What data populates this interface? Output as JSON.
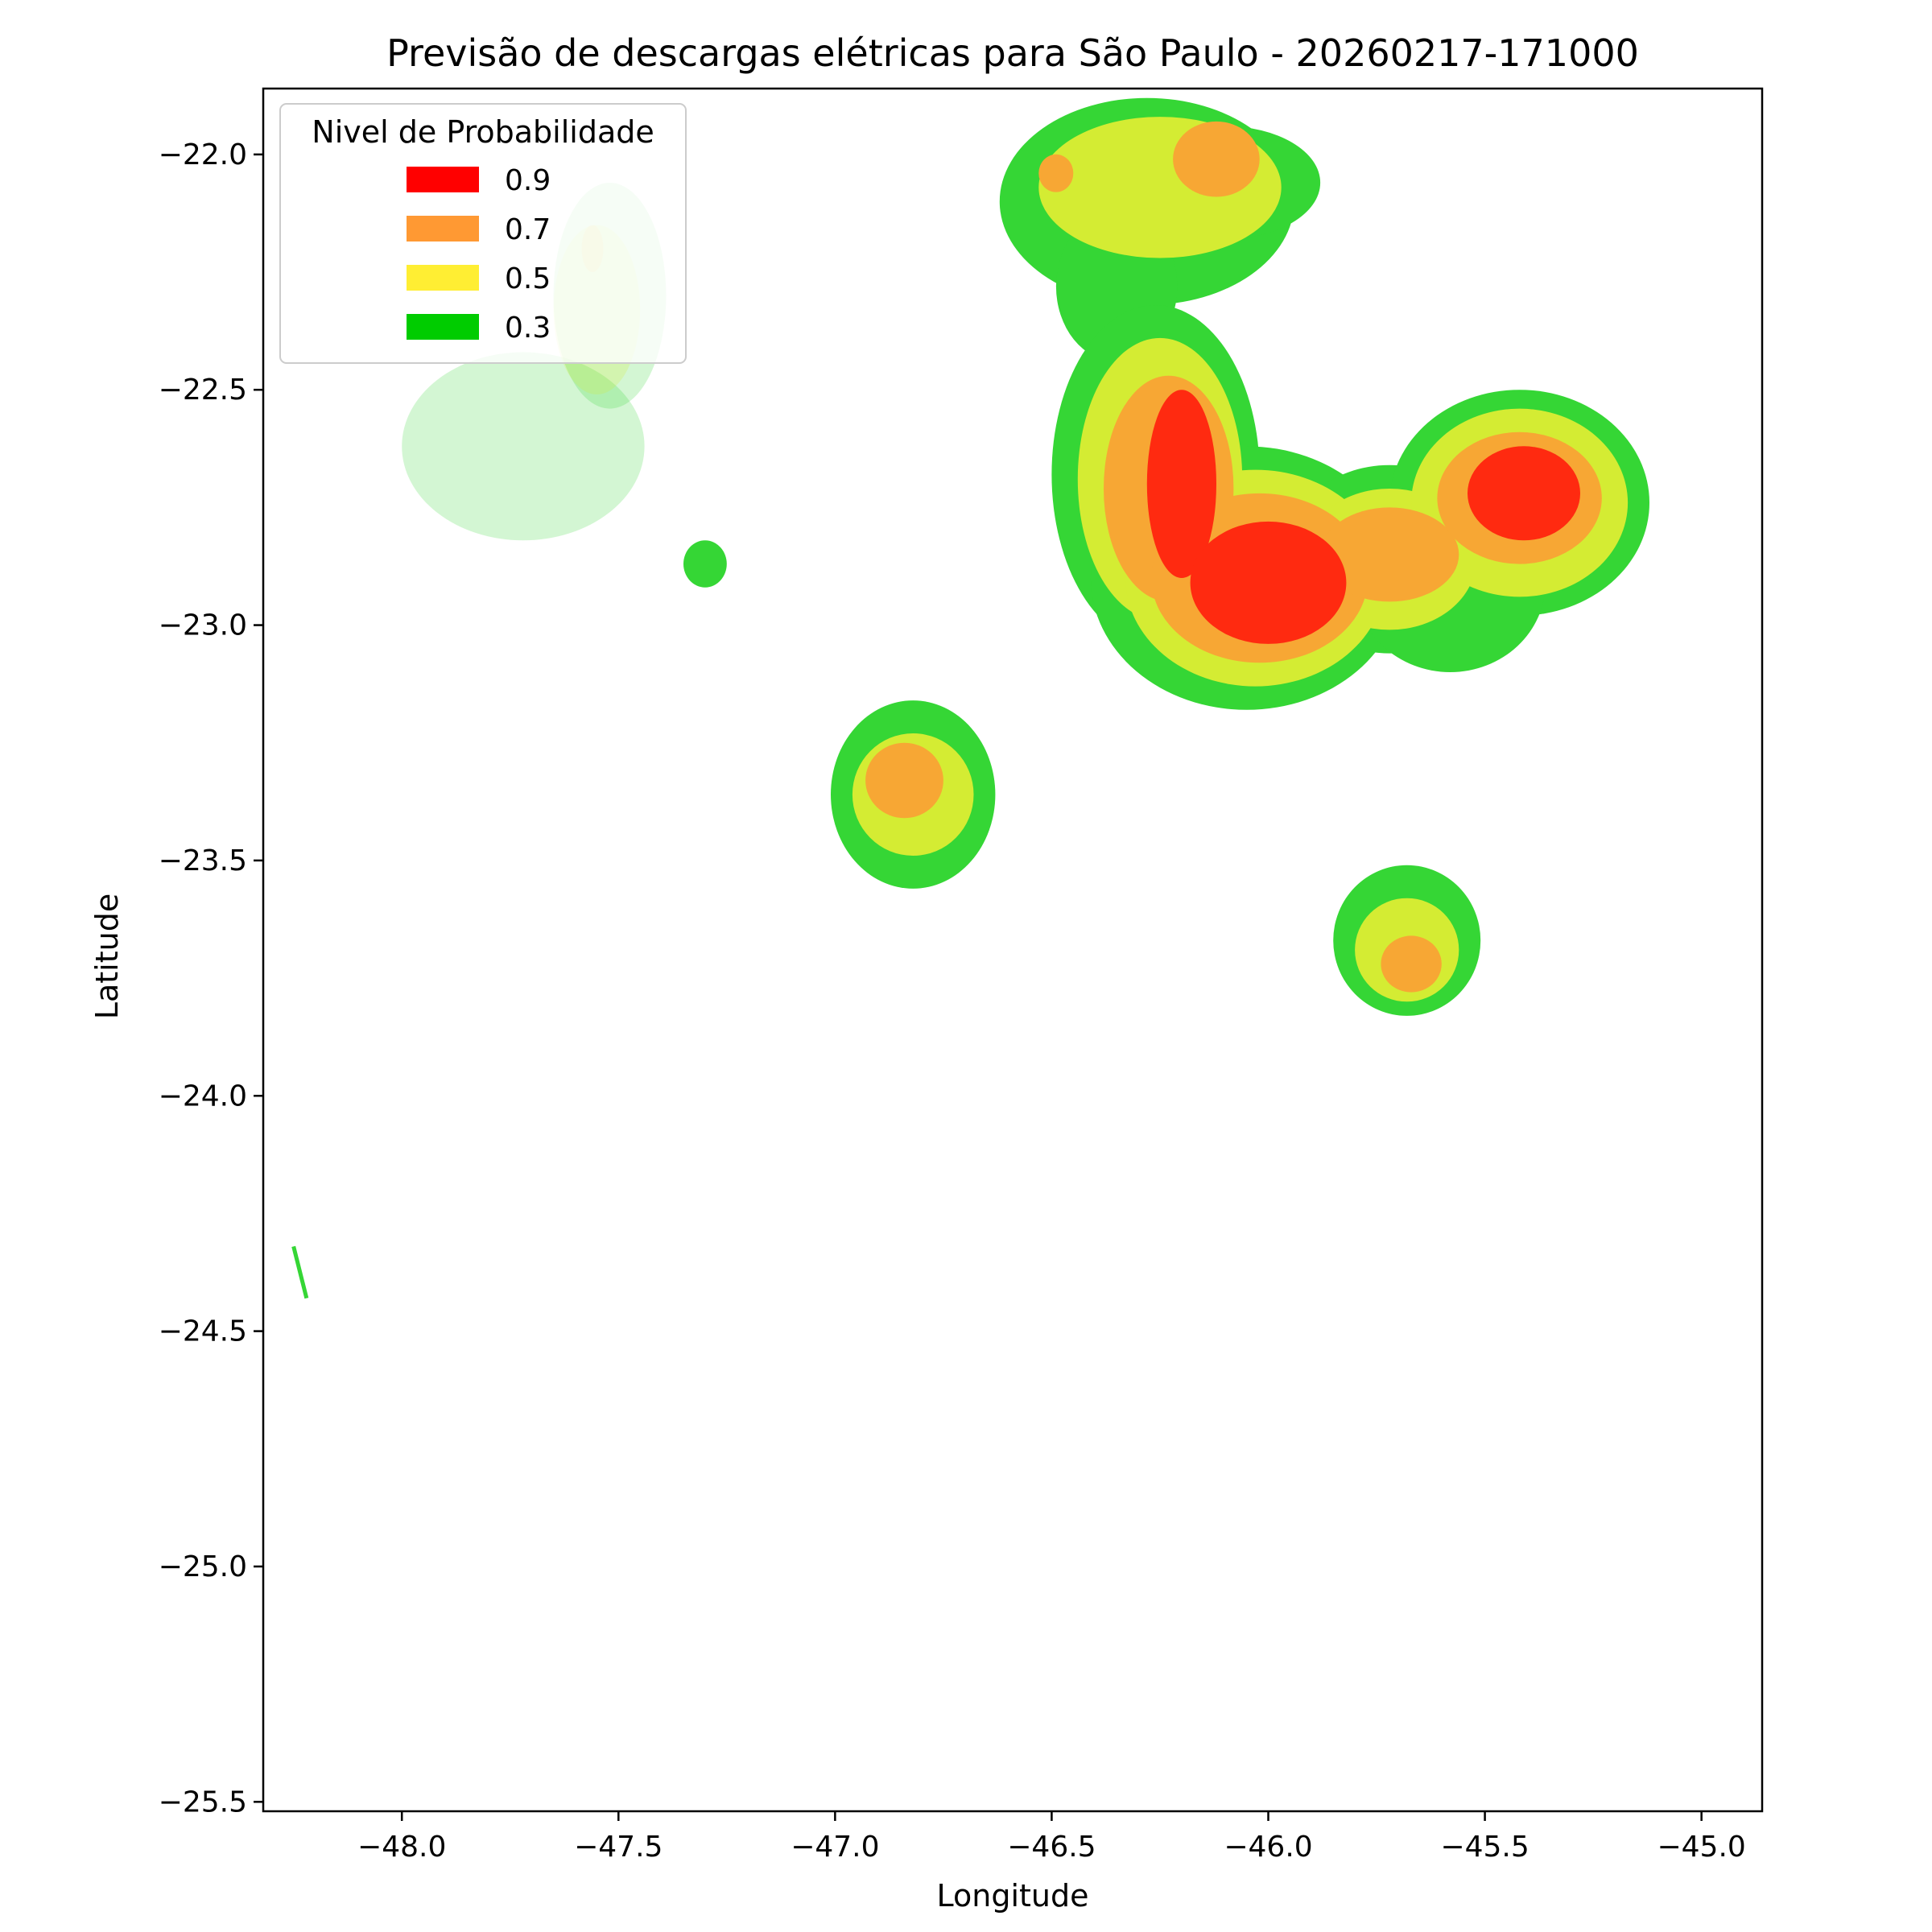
{
  "chart_data": {
    "type": "contour",
    "title": "Previsão de descargas elétricas para São Paulo - 20260217-171000",
    "xlabel": "Longitude",
    "ylabel": "Latitude",
    "xlim": [
      -48.32,
      -44.86
    ],
    "ylim": [
      -25.52,
      -21.86
    ],
    "xticks": [
      -48.0,
      -47.5,
      -47.0,
      -46.5,
      -46.0,
      -45.5,
      -45.0
    ],
    "xtick_labels": [
      "−48.0",
      "−47.5",
      "−47.0",
      "−46.5",
      "−46.0",
      "−45.5",
      "−45.0"
    ],
    "yticks": [
      -22.0,
      -22.5,
      -23.0,
      -23.5,
      -24.0,
      -24.5,
      -25.0,
      -25.5
    ],
    "ytick_labels": [
      "−22.0",
      "−22.5",
      "−23.0",
      "−23.5",
      "−24.0",
      "−24.5",
      "−25.0",
      "−25.5"
    ],
    "grid": false,
    "legend": {
      "title": "Nivel de Probabilidade",
      "location": "upper-left",
      "entries": [
        {
          "label": "0.9",
          "color": "#ff0000"
        },
        {
          "label": "0.7",
          "color": "#ff9933"
        },
        {
          "label": "0.5",
          "color": "#ffee33"
        },
        {
          "label": "0.3",
          "color": "#00cc00"
        }
      ]
    },
    "fill_colors": {
      "0.3": "#35d635",
      "0.5": "#d4ec33",
      "0.7": "#f7a734",
      "0.9": "#ff2a10"
    },
    "cells": [
      {
        "level": 0.3,
        "lon": -47.72,
        "lat": -22.62,
        "r_lon": 0.28,
        "r_lat": 0.2,
        "faded": true
      },
      {
        "level": 0.3,
        "lon": -47.52,
        "lat": -22.3,
        "r_lon": 0.13,
        "r_lat": 0.24,
        "faded": true
      },
      {
        "level": 0.5,
        "lon": -47.55,
        "lat": -22.33,
        "r_lon": 0.1,
        "r_lat": 0.18,
        "faded": true
      },
      {
        "level": 0.7,
        "lon": -47.56,
        "lat": -22.2,
        "r_lon": 0.025,
        "r_lat": 0.05,
        "faded": true
      },
      {
        "level": 0.3,
        "lon": -47.3,
        "lat": -22.87,
        "r_lon": 0.05,
        "r_lat": 0.05
      },
      {
        "level": 0.3,
        "lon": -46.82,
        "lat": -23.36,
        "r_lon": 0.19,
        "r_lat": 0.2
      },
      {
        "level": 0.5,
        "lon": -46.82,
        "lat": -23.36,
        "r_lon": 0.14,
        "r_lat": 0.13
      },
      {
        "level": 0.7,
        "lon": -46.84,
        "lat": -23.33,
        "r_lon": 0.09,
        "r_lat": 0.08
      },
      {
        "level": 0.3,
        "lon": -45.68,
        "lat": -23.67,
        "r_lon": 0.17,
        "r_lat": 0.16
      },
      {
        "level": 0.5,
        "lon": -45.68,
        "lat": -23.69,
        "r_lon": 0.12,
        "r_lat": 0.11
      },
      {
        "level": 0.7,
        "lon": -45.67,
        "lat": -23.72,
        "r_lon": 0.07,
        "r_lat": 0.06
      },
      {
        "level": 0.3,
        "lon": -46.28,
        "lat": -22.1,
        "r_lon": 0.34,
        "r_lat": 0.22
      },
      {
        "level": 0.3,
        "lon": -46.35,
        "lat": -22.28,
        "r_lon": 0.14,
        "r_lat": 0.16
      },
      {
        "level": 0.3,
        "lon": -46.1,
        "lat": -22.06,
        "r_lon": 0.22,
        "r_lat": 0.12
      },
      {
        "level": 0.5,
        "lon": -46.25,
        "lat": -22.07,
        "r_lon": 0.28,
        "r_lat": 0.15
      },
      {
        "level": 0.7,
        "lon": -46.12,
        "lat": -22.01,
        "r_lon": 0.1,
        "r_lat": 0.08
      },
      {
        "level": 0.7,
        "lon": -46.49,
        "lat": -22.04,
        "r_lon": 0.04,
        "r_lat": 0.04
      },
      {
        "level": 0.3,
        "lon": -46.26,
        "lat": -22.68,
        "r_lon": 0.24,
        "r_lat": 0.36
      },
      {
        "level": 0.3,
        "lon": -46.05,
        "lat": -22.9,
        "r_lon": 0.36,
        "r_lat": 0.28
      },
      {
        "level": 0.3,
        "lon": -45.72,
        "lat": -22.86,
        "r_lon": 0.25,
        "r_lat": 0.2
      },
      {
        "level": 0.3,
        "lon": -45.42,
        "lat": -22.74,
        "r_lon": 0.3,
        "r_lat": 0.24
      },
      {
        "level": 0.3,
        "lon": -45.58,
        "lat": -22.91,
        "r_lon": 0.22,
        "r_lat": 0.19
      },
      {
        "level": 0.5,
        "lon": -46.25,
        "lat": -22.69,
        "r_lon": 0.19,
        "r_lat": 0.3
      },
      {
        "level": 0.5,
        "lon": -46.03,
        "lat": -22.9,
        "r_lon": 0.3,
        "r_lat": 0.23
      },
      {
        "level": 0.5,
        "lon": -45.72,
        "lat": -22.86,
        "r_lon": 0.2,
        "r_lat": 0.15
      },
      {
        "level": 0.5,
        "lon": -45.42,
        "lat": -22.74,
        "r_lon": 0.25,
        "r_lat": 0.2
      },
      {
        "level": 0.7,
        "lon": -46.23,
        "lat": -22.71,
        "r_lon": 0.15,
        "r_lat": 0.24
      },
      {
        "level": 0.7,
        "lon": -46.02,
        "lat": -22.9,
        "r_lon": 0.25,
        "r_lat": 0.18
      },
      {
        "level": 0.7,
        "lon": -45.72,
        "lat": -22.85,
        "r_lon": 0.16,
        "r_lat": 0.1
      },
      {
        "level": 0.7,
        "lon": -45.42,
        "lat": -22.73,
        "r_lon": 0.19,
        "r_lat": 0.14
      },
      {
        "level": 0.9,
        "lon": -46.2,
        "lat": -22.7,
        "r_lon": 0.08,
        "r_lat": 0.2
      },
      {
        "level": 0.9,
        "lon": -46.0,
        "lat": -22.91,
        "r_lon": 0.18,
        "r_lat": 0.13
      },
      {
        "level": 0.9,
        "lon": -45.41,
        "lat": -22.72,
        "r_lon": 0.13,
        "r_lat": 0.1
      }
    ],
    "streak": {
      "level": 0.3,
      "points": [
        [
          -48.25,
          -24.32
        ],
        [
          -48.22,
          -24.43
        ]
      ]
    }
  }
}
